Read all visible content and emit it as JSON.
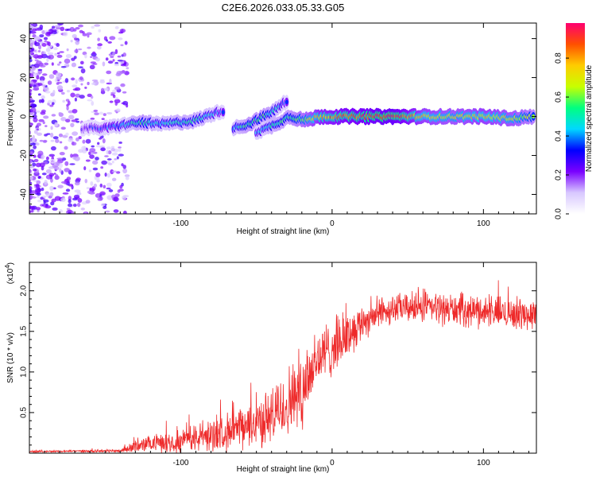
{
  "title": "C2E6.2026.033.05.33.G05",
  "chart_data": [
    {
      "type": "heatmap",
      "title": "C2E6.2026.033.05.33.G05",
      "xlabel": "Height of straight line (km)",
      "ylabel": "Frequency (Hz)",
      "xlim": [
        -200,
        135
      ],
      "ylim": [
        -50,
        48
      ],
      "xticks": [
        -100,
        0,
        100
      ],
      "xtick_labels": [
        "-100",
        "0",
        "100"
      ],
      "yticks": [
        -40,
        -20,
        0,
        20,
        40
      ],
      "ytick_labels": [
        "-40",
        "-20",
        "0",
        "20",
        "40"
      ],
      "colorbar": {
        "label": "Normalized spectral amplitude",
        "range": [
          0.0,
          0.98
        ],
        "ticks": [
          0.0,
          0.2,
          0.4,
          0.6,
          0.8
        ],
        "tick_labels": [
          "0.0",
          "0.2",
          "0.4",
          "0.6",
          "0.8"
        ],
        "colormap": [
          "#ffffff",
          "#d8c8ff",
          "#7a00ff",
          "#0000ff",
          "#00d8ff",
          "#00ff80",
          "#c8ff00",
          "#ffcc00",
          "#ff5000",
          "#ff0070"
        ]
      },
      "ridge": [
        {
          "x": -165,
          "y": -6,
          "amp": 0.25
        },
        {
          "x": -150,
          "y": -6,
          "amp": 0.35
        },
        {
          "x": -135,
          "y": -4,
          "amp": 0.45
        },
        {
          "x": -125,
          "y": -3,
          "amp": 0.55
        },
        {
          "x": -115,
          "y": -4,
          "amp": 0.45
        },
        {
          "x": -100,
          "y": -3,
          "amp": 0.5
        },
        {
          "x": -90,
          "y": -2,
          "amp": 0.5
        },
        {
          "x": -80,
          "y": 1,
          "amp": 0.45
        },
        {
          "x": -72,
          "y": 3,
          "amp": 0.35
        },
        {
          "x": -65,
          "y": -6,
          "amp": 0.45
        },
        {
          "x": -55,
          "y": -4,
          "amp": 0.55
        },
        {
          "x": -45,
          "y": 0,
          "amp": 0.55
        },
        {
          "x": -38,
          "y": 3,
          "amp": 0.5
        },
        {
          "x": -30,
          "y": 8,
          "amp": 0.35
        },
        {
          "x": -50,
          "y": -8,
          "amp": 0.4
        },
        {
          "x": -40,
          "y": -5,
          "amp": 0.5
        },
        {
          "x": -28,
          "y": 0,
          "amp": 0.55
        },
        {
          "x": -18,
          "y": -2,
          "amp": 0.65
        },
        {
          "x": -8,
          "y": 0,
          "amp": 0.8
        },
        {
          "x": 5,
          "y": 0,
          "amp": 0.85
        },
        {
          "x": 20,
          "y": 0,
          "amp": 0.9
        },
        {
          "x": 40,
          "y": 0,
          "amp": 0.95
        },
        {
          "x": 60,
          "y": 0,
          "amp": 0.75
        },
        {
          "x": 80,
          "y": 0,
          "amp": 0.7
        },
        {
          "x": 100,
          "y": 0,
          "amp": 0.75
        },
        {
          "x": 120,
          "y": -1,
          "amp": 0.7
        },
        {
          "x": 133,
          "y": 0,
          "amp": 0.6
        }
      ]
    },
    {
      "type": "line",
      "xlabel": "Height of straight line (km)",
      "ylabel": "SNR (10 * v/v)",
      "y_multiplier": "(x10",
      "y_multiplier_exp": "4",
      "y_multiplier_close": ")",
      "xlim": [
        -200,
        135
      ],
      "ylim": [
        0,
        2.35
      ],
      "xticks": [
        -100,
        0,
        100
      ],
      "xtick_labels": [
        "-100",
        "0",
        "100"
      ],
      "yticks": [
        0.5,
        1.0,
        1.5,
        2.0
      ],
      "ytick_labels": [
        "0.5",
        "1.0",
        "1.5",
        "2.0"
      ],
      "series": [
        {
          "name": "SNR",
          "color": "#ee2a2a",
          "envelope_x": [
            -200,
            -140,
            -130,
            -120,
            -100,
            -80,
            -60,
            -40,
            -30,
            -20,
            -15,
            -10,
            0,
            10,
            20,
            30,
            40,
            60,
            80,
            100,
            120,
            135
          ],
          "envelope_mean": [
            0.02,
            0.03,
            0.08,
            0.12,
            0.15,
            0.22,
            0.3,
            0.45,
            0.6,
            0.8,
            1.0,
            1.15,
            1.3,
            1.45,
            1.62,
            1.72,
            1.78,
            1.8,
            1.77,
            1.75,
            1.72,
            1.7
          ],
          "envelope_spread": [
            0.01,
            0.02,
            0.08,
            0.1,
            0.15,
            0.2,
            0.25,
            0.35,
            0.45,
            0.5,
            0.55,
            0.4,
            0.35,
            0.3,
            0.22,
            0.2,
            0.18,
            0.2,
            0.2,
            0.2,
            0.2,
            0.18
          ]
        }
      ]
    }
  ]
}
